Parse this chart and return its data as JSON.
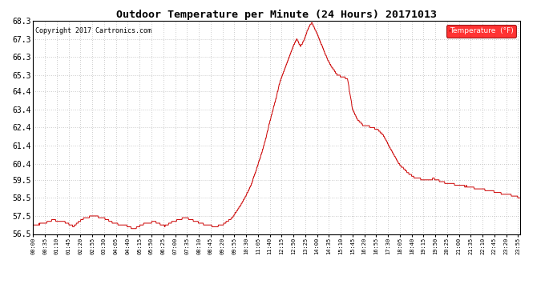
{
  "title": "Outdoor Temperature per Minute (24 Hours) 20171013",
  "copyright": "Copyright 2017 Cartronics.com",
  "legend_label": "Temperature  (°F)",
  "line_color": "#cc0000",
  "bg_color": "#ffffff",
  "grid_color": "#aaaaaa",
  "ylim": [
    56.5,
    68.3
  ],
  "yticks": [
    56.5,
    57.5,
    58.5,
    59.5,
    60.4,
    61.4,
    62.4,
    63.4,
    64.4,
    65.3,
    66.3,
    67.3,
    68.3
  ],
  "x_tick_labels": [
    "00:00",
    "00:35",
    "01:10",
    "01:45",
    "02:20",
    "02:55",
    "03:30",
    "04:05",
    "04:40",
    "05:15",
    "05:50",
    "06:25",
    "07:00",
    "07:35",
    "08:10",
    "08:45",
    "09:20",
    "09:55",
    "10:30",
    "11:05",
    "11:40",
    "12:15",
    "12:50",
    "13:25",
    "14:00",
    "14:35",
    "15:10",
    "15:45",
    "16:20",
    "16:55",
    "17:30",
    "18:05",
    "18:40",
    "19:15",
    "19:50",
    "20:25",
    "21:00",
    "21:35",
    "22:10",
    "22:45",
    "23:20",
    "23:55"
  ],
  "key_times_minutes": [
    0,
    30,
    60,
    90,
    120,
    150,
    180,
    210,
    240,
    270,
    300,
    330,
    360,
    390,
    420,
    450,
    480,
    510,
    540,
    560,
    575,
    590,
    600,
    615,
    630,
    645,
    660,
    675,
    690,
    700,
    710,
    720,
    730,
    740,
    750,
    760,
    770,
    775,
    780,
    785,
    790,
    795,
    800,
    805,
    810,
    815,
    820,
    825,
    830,
    835,
    840,
    855,
    870,
    885,
    900,
    915,
    930,
    945,
    960,
    975,
    990,
    1005,
    1020,
    1035,
    1050,
    1065,
    1080,
    1095,
    1110,
    1125,
    1140,
    1155,
    1170,
    1185,
    1200,
    1215,
    1230,
    1260,
    1290,
    1320,
    1350,
    1380,
    1410,
    1440
  ],
  "key_temps": [
    57.0,
    57.1,
    57.3,
    57.2,
    56.9,
    57.4,
    57.5,
    57.4,
    57.1,
    57.0,
    56.8,
    57.1,
    57.2,
    57.0,
    57.3,
    57.5,
    57.3,
    57.1,
    57.0,
    57.1,
    57.3,
    57.5,
    57.8,
    58.2,
    58.7,
    59.3,
    60.1,
    61.0,
    62.0,
    62.8,
    63.5,
    64.2,
    65.0,
    65.5,
    66.0,
    66.5,
    67.0,
    67.2,
    67.4,
    67.2,
    67.0,
    67.1,
    67.3,
    67.5,
    67.8,
    68.0,
    68.2,
    68.3,
    68.1,
    67.9,
    67.7,
    67.0,
    66.3,
    65.8,
    65.4,
    65.3,
    65.2,
    63.5,
    62.9,
    62.6,
    62.5,
    62.4,
    62.3,
    62.0,
    61.5,
    61.0,
    60.5,
    60.2,
    59.9,
    59.7,
    59.6,
    59.5,
    59.5,
    59.6,
    59.5,
    59.4,
    59.3,
    59.2,
    59.1,
    59.0,
    58.9,
    58.8,
    58.7,
    58.5
  ]
}
